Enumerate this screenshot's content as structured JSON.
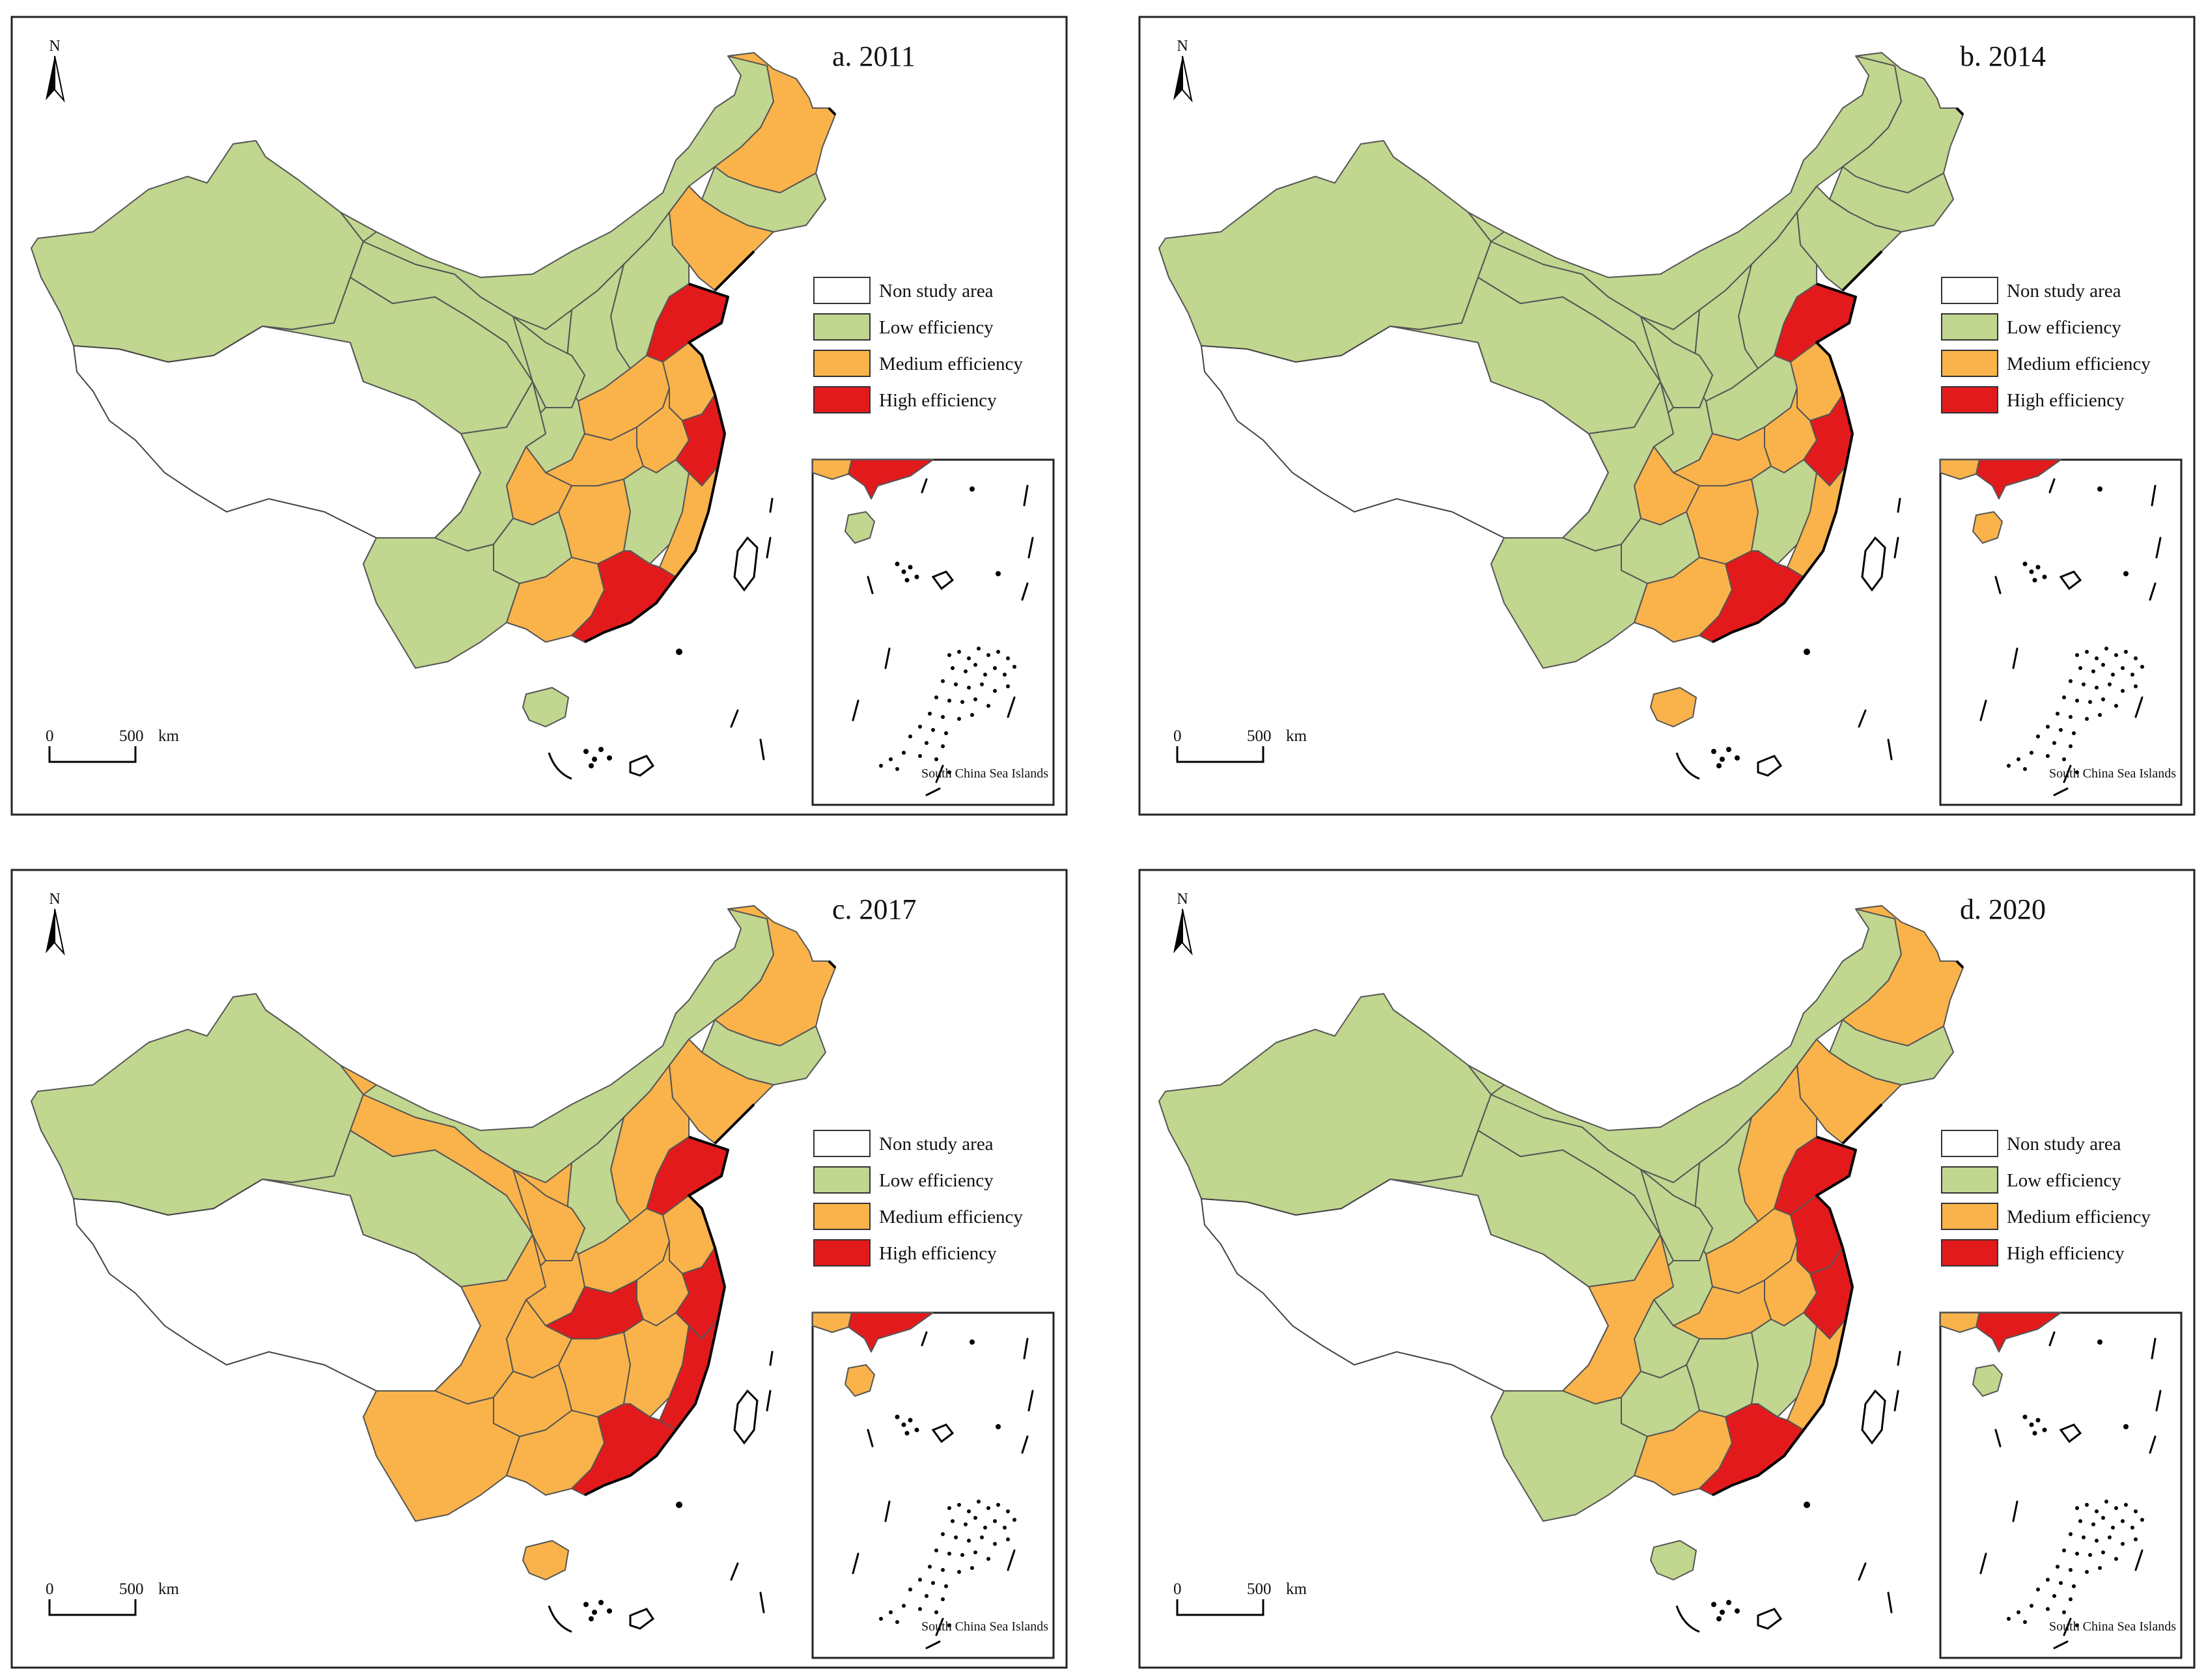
{
  "figure": {
    "panels": [
      {
        "id": "a",
        "title": "a. 2011"
      },
      {
        "id": "b",
        "title": "b. 2014"
      },
      {
        "id": "c",
        "title": "c. 2017"
      },
      {
        "id": "d",
        "title": "d. 2020"
      }
    ],
    "north_label": "N",
    "scale_bar": {
      "zero": "0",
      "value": "500",
      "unit": "km"
    },
    "inset_label": "South China Sea Islands",
    "legend": [
      {
        "key": "non",
        "label": "Non study area",
        "color": "#ffffff"
      },
      {
        "key": "low",
        "label": "Low efficiency",
        "color": "#c1d68f"
      },
      {
        "key": "med",
        "label": "Medium efficiency",
        "color": "#f9b34a"
      },
      {
        "key": "high",
        "label": "High efficiency",
        "color": "#e31a1c"
      }
    ]
  },
  "chart_data": {
    "type": "choropleth",
    "categories": [
      "Non study area",
      "Low efficiency",
      "Medium efficiency",
      "High efficiency"
    ],
    "maps": [
      {
        "year": "2011",
        "title": "a. 2011",
        "classes": {
          "xinjiang": "low",
          "tibet": "non",
          "qinghai": "low",
          "gansu": "low",
          "inner_mongolia": "low",
          "heilongjiang": "med",
          "jilin": "low",
          "liaoning": "med",
          "hebei": "low",
          "shanxi": "low",
          "shaanxi": "low",
          "ningxia": "low",
          "shandong": "high",
          "henan": "med",
          "hubei": "med",
          "anhui": "med",
          "jiangsu": "med",
          "zhejiang": "high",
          "jiangxi": "low",
          "hunan": "med",
          "fujian": "med",
          "guangdong": "high",
          "guangxi": "med",
          "sichuan": "low",
          "chongqing": "med",
          "guizhou": "low",
          "yunnan": "low",
          "hainan": "low"
        }
      },
      {
        "year": "2014",
        "title": "b. 2014",
        "classes": {
          "xinjiang": "low",
          "tibet": "non",
          "qinghai": "low",
          "gansu": "low",
          "inner_mongolia": "low",
          "heilongjiang": "low",
          "jilin": "low",
          "liaoning": "low",
          "hebei": "low",
          "shanxi": "low",
          "shaanxi": "low",
          "ningxia": "low",
          "shandong": "high",
          "henan": "low",
          "hubei": "med",
          "anhui": "med",
          "jiangsu": "med",
          "zhejiang": "high",
          "jiangxi": "low",
          "hunan": "med",
          "fujian": "med",
          "guangdong": "high",
          "guangxi": "med",
          "sichuan": "low",
          "chongqing": "med",
          "guizhou": "low",
          "yunnan": "low",
          "hainan": "med"
        }
      },
      {
        "year": "2017",
        "title": "c. 2017",
        "classes": {
          "xinjiang": "low",
          "tibet": "non",
          "qinghai": "low",
          "gansu": "med",
          "inner_mongolia": "low",
          "heilongjiang": "med",
          "jilin": "low",
          "liaoning": "med",
          "hebei": "med",
          "shanxi": "low",
          "shaanxi": "med",
          "ningxia": "med",
          "shandong": "high",
          "henan": "med",
          "hubei": "high",
          "anhui": "med",
          "jiangsu": "med",
          "zhejiang": "high",
          "jiangxi": "med",
          "hunan": "med",
          "fujian": "high",
          "guangdong": "high",
          "guangxi": "med",
          "sichuan": "med",
          "chongqing": "med",
          "guizhou": "med",
          "yunnan": "med",
          "hainan": "med"
        }
      },
      {
        "year": "2020",
        "title": "d. 2020",
        "classes": {
          "xinjiang": "low",
          "tibet": "non",
          "qinghai": "low",
          "gansu": "low",
          "inner_mongolia": "low",
          "heilongjiang": "med",
          "jilin": "low",
          "liaoning": "med",
          "hebei": "med",
          "shanxi": "low",
          "shaanxi": "low",
          "ningxia": "low",
          "shandong": "high",
          "henan": "med",
          "hubei": "med",
          "anhui": "med",
          "jiangsu": "high",
          "zhejiang": "high",
          "jiangxi": "low",
          "hunan": "low",
          "fujian": "med",
          "guangdong": "high",
          "guangxi": "med",
          "sichuan": "med",
          "chongqing": "low",
          "guizhou": "low",
          "yunnan": "low",
          "hainan": "low"
        }
      }
    ]
  }
}
